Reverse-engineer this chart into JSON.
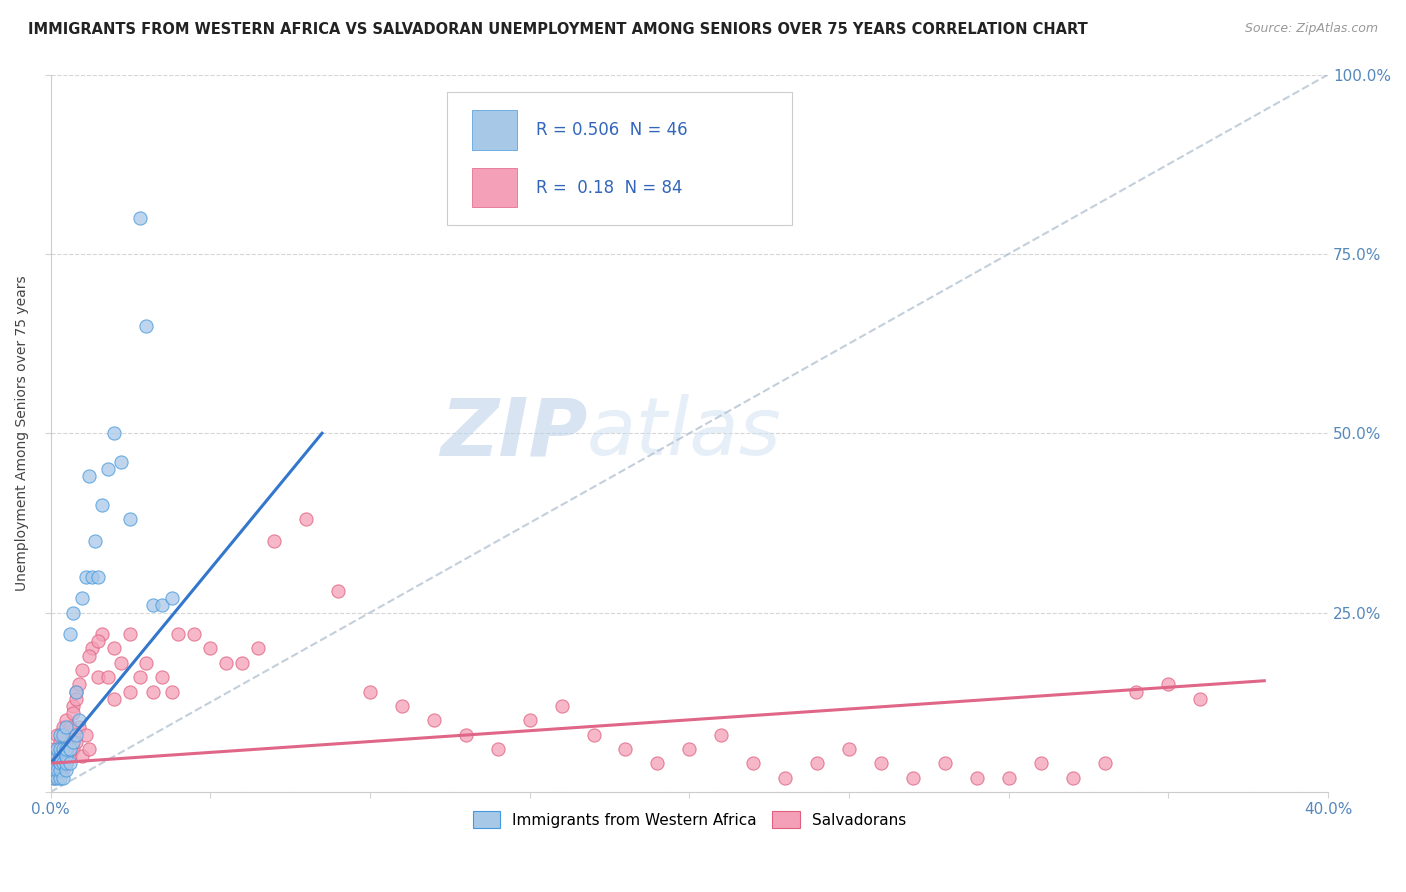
{
  "title": "IMMIGRANTS FROM WESTERN AFRICA VS SALVADORAN UNEMPLOYMENT AMONG SENIORS OVER 75 YEARS CORRELATION CHART",
  "source": "Source: ZipAtlas.com",
  "ylabel": "Unemployment Among Seniors over 75 years",
  "xlim": [
    0.0,
    0.4
  ],
  "ylim": [
    0.0,
    1.0
  ],
  "blue_R": 0.506,
  "blue_N": 46,
  "pink_R": 0.18,
  "pink_N": 84,
  "blue_fill": "#a8c8e8",
  "blue_edge": "#4499dd",
  "pink_fill": "#f4a0b8",
  "pink_edge": "#e06080",
  "blue_line": "#3377cc",
  "pink_line": "#e06688",
  "diag_color": "#aabbcc",
  "watermark_color": "#c5d8ee",
  "blue_scatter_x": [
    0.001,
    0.001,
    0.001,
    0.002,
    0.002,
    0.002,
    0.002,
    0.003,
    0.003,
    0.003,
    0.003,
    0.003,
    0.003,
    0.004,
    0.004,
    0.004,
    0.004,
    0.005,
    0.005,
    0.005,
    0.005,
    0.005,
    0.006,
    0.006,
    0.006,
    0.007,
    0.007,
    0.008,
    0.008,
    0.009,
    0.01,
    0.011,
    0.012,
    0.013,
    0.014,
    0.015,
    0.016,
    0.018,
    0.02,
    0.022,
    0.025,
    0.028,
    0.03,
    0.032,
    0.035,
    0.038
  ],
  "blue_scatter_y": [
    0.02,
    0.03,
    0.04,
    0.02,
    0.03,
    0.05,
    0.06,
    0.02,
    0.03,
    0.04,
    0.05,
    0.06,
    0.08,
    0.02,
    0.04,
    0.06,
    0.08,
    0.03,
    0.04,
    0.05,
    0.06,
    0.09,
    0.04,
    0.06,
    0.22,
    0.07,
    0.25,
    0.08,
    0.14,
    0.1,
    0.27,
    0.3,
    0.44,
    0.3,
    0.35,
    0.3,
    0.4,
    0.45,
    0.5,
    0.46,
    0.38,
    0.8,
    0.65,
    0.26,
    0.26,
    0.27
  ],
  "blue_trend_x": [
    0.0,
    0.085
  ],
  "blue_trend_y": [
    0.04,
    0.5
  ],
  "pink_scatter_x": [
    0.001,
    0.001,
    0.001,
    0.002,
    0.002,
    0.002,
    0.003,
    0.003,
    0.004,
    0.004,
    0.004,
    0.005,
    0.005,
    0.005,
    0.006,
    0.006,
    0.007,
    0.007,
    0.008,
    0.008,
    0.009,
    0.01,
    0.011,
    0.012,
    0.013,
    0.015,
    0.016,
    0.018,
    0.02,
    0.022,
    0.025,
    0.025,
    0.028,
    0.03,
    0.032,
    0.035,
    0.038,
    0.04,
    0.045,
    0.05,
    0.055,
    0.06,
    0.065,
    0.07,
    0.08,
    0.09,
    0.1,
    0.11,
    0.12,
    0.13,
    0.14,
    0.15,
    0.16,
    0.17,
    0.18,
    0.19,
    0.2,
    0.21,
    0.22,
    0.23,
    0.24,
    0.25,
    0.26,
    0.27,
    0.28,
    0.29,
    0.3,
    0.31,
    0.32,
    0.33,
    0.34,
    0.35,
    0.36,
    0.003,
    0.004,
    0.005,
    0.006,
    0.007,
    0.008,
    0.009,
    0.01,
    0.012,
    0.015,
    0.02
  ],
  "pink_scatter_y": [
    0.02,
    0.04,
    0.06,
    0.03,
    0.05,
    0.08,
    0.04,
    0.07,
    0.03,
    0.05,
    0.09,
    0.04,
    0.06,
    0.1,
    0.05,
    0.08,
    0.06,
    0.12,
    0.07,
    0.14,
    0.09,
    0.05,
    0.08,
    0.06,
    0.2,
    0.16,
    0.22,
    0.16,
    0.2,
    0.18,
    0.22,
    0.14,
    0.16,
    0.18,
    0.14,
    0.16,
    0.14,
    0.22,
    0.22,
    0.2,
    0.18,
    0.18,
    0.2,
    0.35,
    0.38,
    0.28,
    0.14,
    0.12,
    0.1,
    0.08,
    0.06,
    0.1,
    0.12,
    0.08,
    0.06,
    0.04,
    0.06,
    0.08,
    0.04,
    0.02,
    0.04,
    0.06,
    0.04,
    0.02,
    0.04,
    0.02,
    0.02,
    0.04,
    0.02,
    0.04,
    0.14,
    0.15,
    0.13,
    0.03,
    0.05,
    0.07,
    0.09,
    0.11,
    0.13,
    0.15,
    0.17,
    0.19,
    0.21,
    0.13
  ],
  "pink_trend_x": [
    0.0,
    0.38
  ],
  "pink_trend_y": [
    0.04,
    0.155
  ]
}
